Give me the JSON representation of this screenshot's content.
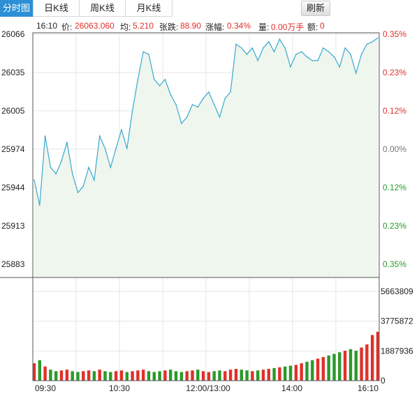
{
  "tabs": [
    {
      "label": "分时图",
      "active": true
    },
    {
      "label": "日K线",
      "active": false
    },
    {
      "label": "周K线",
      "active": false
    },
    {
      "label": "月K线",
      "active": false
    }
  ],
  "refresh_label": "刷新",
  "info": {
    "time": "16:10",
    "price_label": "价:",
    "price": "26063.060",
    "avg_label": "均:",
    "avg": "5.210",
    "change_label": "张跌:",
    "change": "88.90",
    "pct_label": "涨幅:",
    "pct": "0.34%",
    "vol_label": "量:",
    "vol": "0.00万手",
    "amount_label": "额:",
    "amount": "0"
  },
  "colors": {
    "line": "#3aa8cf",
    "fill": "#eef6ee",
    "up": "#e0302a",
    "down": "#2a9a2a",
    "grid": "#e6e6e6",
    "tab_active": "#2d8fd5"
  },
  "chart_data": {
    "type": "line",
    "price_ticks": [
      "26066",
      "26035",
      "26005",
      "25974",
      "25944",
      "25913",
      "25883"
    ],
    "pct_ticks": [
      "0.35%",
      "0.23%",
      "0.12%",
      "0.00%",
      "0.12%",
      "0.23%",
      "0.35%"
    ],
    "price_range": [
      25883,
      26066
    ],
    "x_ticks": [
      "09:30",
      "10:30",
      "12:00/13:00",
      "14:00",
      "16:10"
    ],
    "volume_ticks": [
      "5663809",
      "3775872",
      "1887936",
      "0"
    ],
    "volume_max": 5663809,
    "x": [
      "09:30",
      "09:35",
      "09:40",
      "09:45",
      "09:50",
      "09:55",
      "10:00",
      "10:05",
      "10:10",
      "10:15",
      "10:20",
      "10:25",
      "10:30",
      "10:35",
      "10:40",
      "10:45",
      "10:50",
      "10:55",
      "11:00",
      "11:05",
      "11:10",
      "11:15",
      "11:20",
      "11:25",
      "11:30",
      "13:00",
      "13:05",
      "13:10",
      "13:15",
      "13:20",
      "13:25",
      "13:30",
      "13:35",
      "13:40",
      "13:45",
      "13:50",
      "13:55",
      "14:00",
      "14:05",
      "14:10",
      "14:15",
      "14:20",
      "14:25",
      "14:30",
      "14:35",
      "14:40",
      "14:45",
      "14:50",
      "14:55",
      "15:00",
      "15:05",
      "15:10",
      "15:15",
      "15:20",
      "15:25",
      "15:30",
      "15:35",
      "15:40",
      "15:45",
      "15:50",
      "15:55",
      "16:00",
      "16:05",
      "16:10"
    ],
    "series": [
      {
        "values": [
          25950,
          25930,
          25985,
          25960,
          25955,
          25965,
          25980,
          25955,
          25940,
          25945,
          25960,
          25950,
          25985,
          25975,
          25960,
          25975,
          25990,
          25975,
          26005,
          26030,
          26052,
          26050,
          26030,
          26025,
          26030,
          26018,
          26010,
          25995,
          26000,
          26010,
          26008,
          26015,
          26020,
          26010,
          26000,
          26015,
          26020,
          26058,
          26055,
          26050,
          26055,
          26045,
          26055,
          26060,
          26052,
          26062,
          26055,
          26040,
          26050,
          26052,
          26048,
          26045,
          26045,
          26055,
          26052,
          26048,
          26040,
          26055,
          26050,
          26035,
          26050,
          26058,
          26060,
          26063
        ]
      }
    ],
    "volume": [
      1100000,
      1300000,
      900000,
      700000,
      600000,
      650000,
      700000,
      600000,
      550000,
      600000,
      650000,
      600000,
      700000,
      600000,
      550000,
      600000,
      650000,
      550000,
      600000,
      650000,
      700000,
      600000,
      550000,
      600000,
      650000,
      700000,
      600000,
      550000,
      600000,
      650000,
      700000,
      600000,
      550000,
      600000,
      650000,
      600000,
      700000,
      750000,
      700000,
      650000,
      600000,
      650000,
      700000,
      750000,
      800000,
      850000,
      900000,
      950000,
      1000000,
      1100000,
      1200000,
      1300000,
      1400000,
      1500000,
      1600000,
      1700000,
      1800000,
      1900000,
      2000000,
      1900000,
      2100000,
      2300000,
      2900000,
      3100000
    ]
  }
}
